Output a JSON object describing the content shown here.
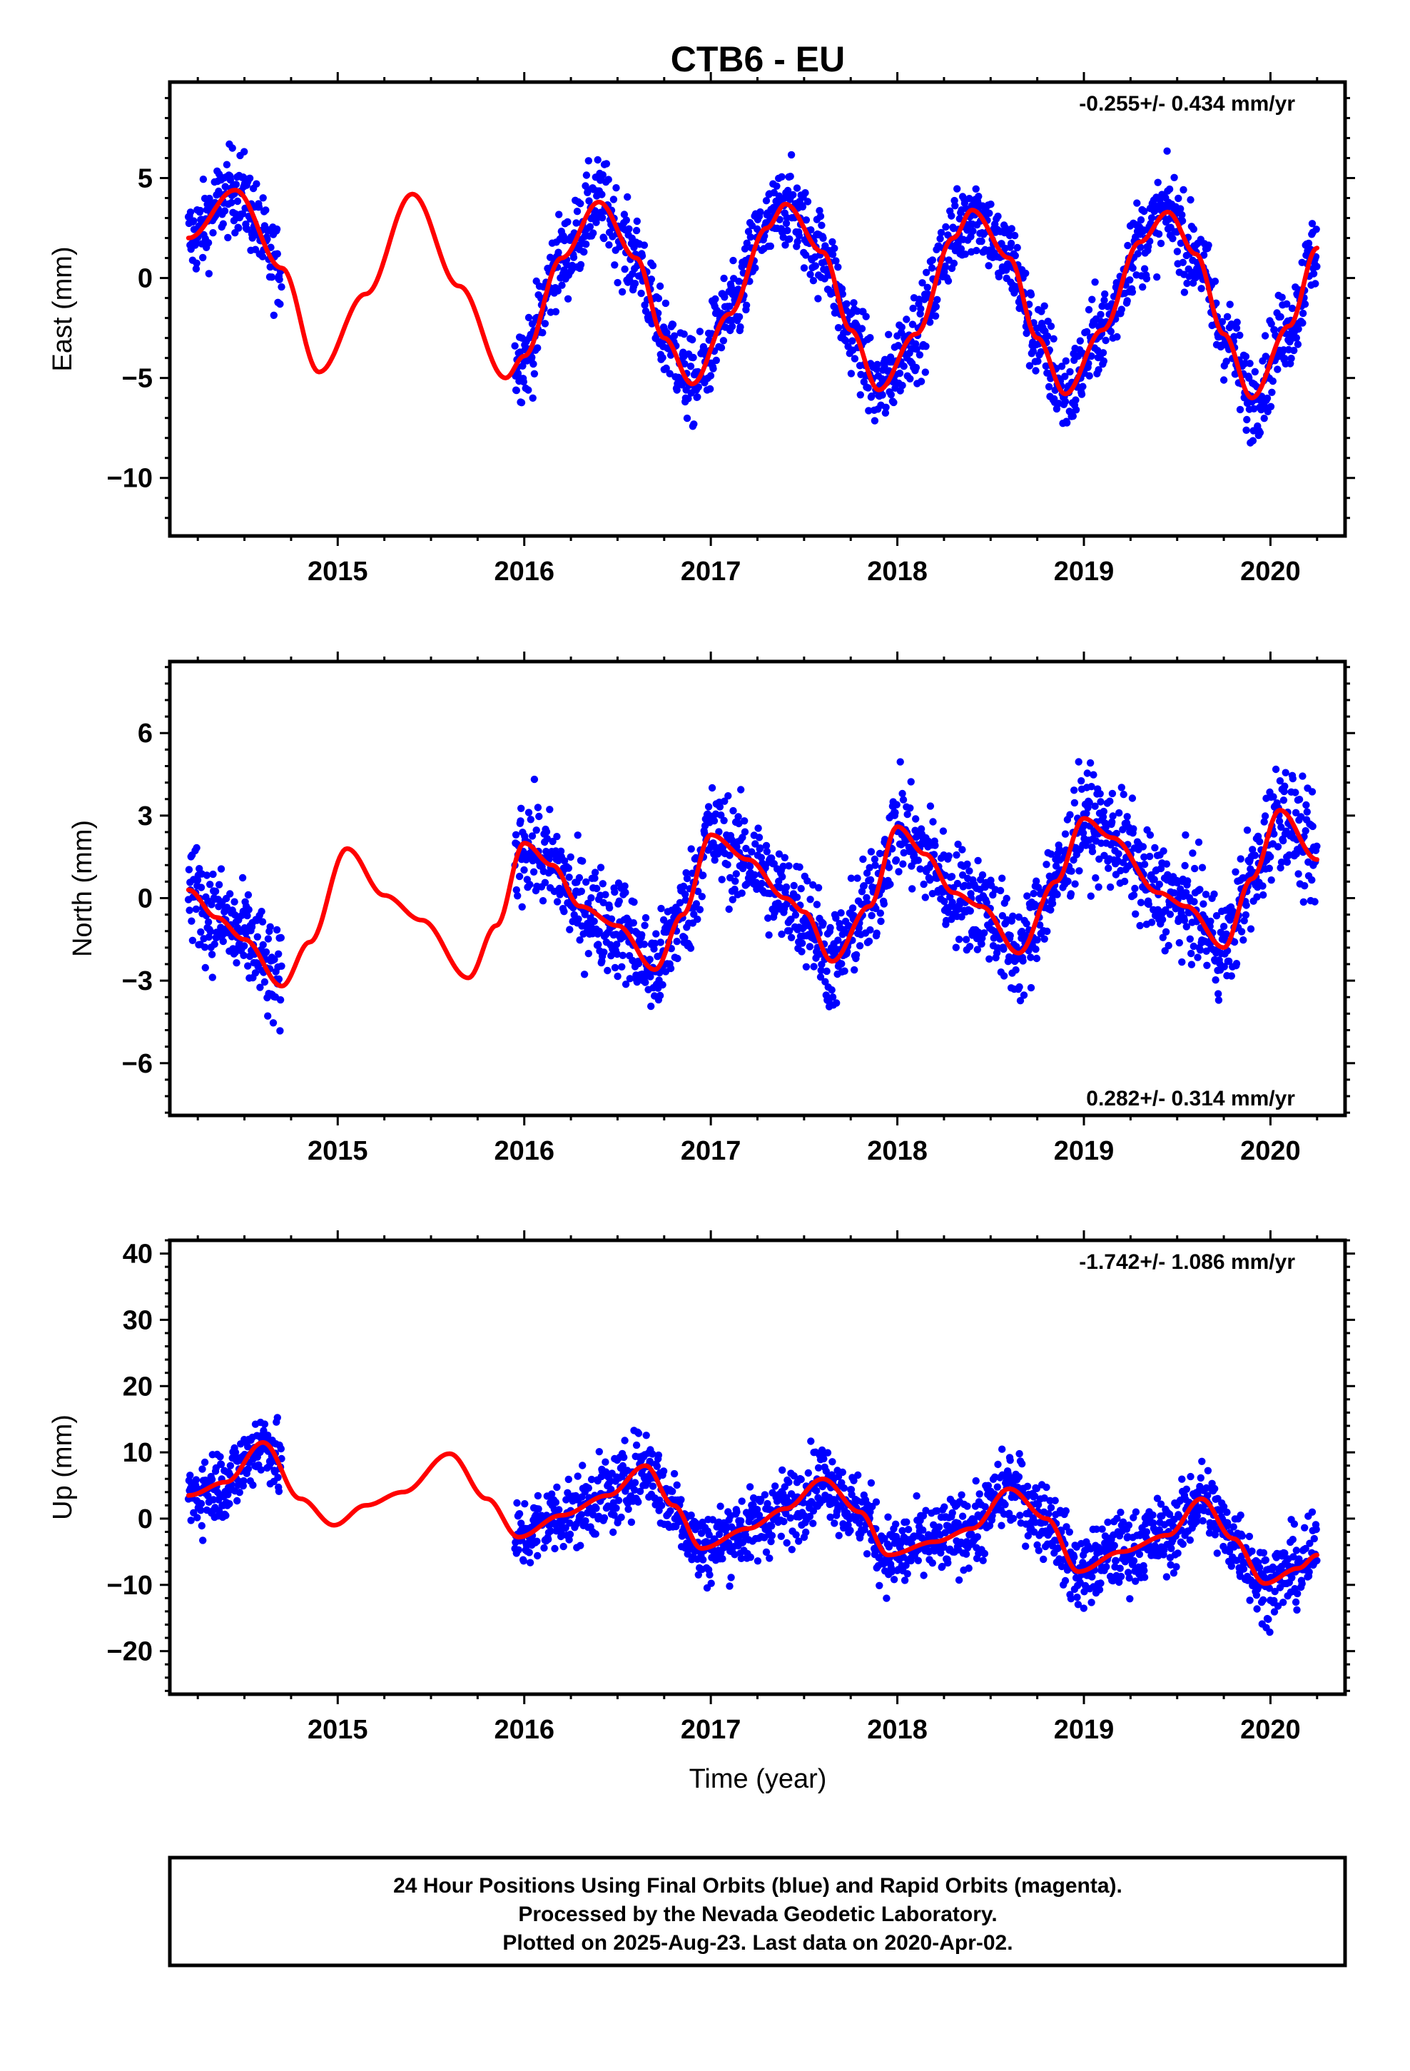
{
  "title": "CTB6 - EU",
  "xlabel": "Time (year)",
  "footer": {
    "line1": "24 Hour Positions Using Final Orbits (blue) and Rapid Orbits (magenta).",
    "line2": "Processed by the Nevada Geodetic Laboratory.",
    "line3": "Plotted on 2025-Aug-23. Last data on 2020-Apr-02."
  },
  "colors": {
    "points": "#0000ff",
    "fit": "#ff0000",
    "frame": "#000000"
  },
  "chart_data": [
    {
      "type": "scatter",
      "ylabel": "East (mm)",
      "rate": "-0.255+/- 0.434 mm/yr",
      "rate_position": "top-right",
      "xlim": [
        2014.1,
        2020.4
      ],
      "ylim": [
        -12.9,
        9.8
      ],
      "xticks": [
        2015,
        2016,
        2017,
        2018,
        2019,
        2020
      ],
      "yticks": [
        -10,
        -5,
        0,
        5
      ],
      "data_span_years": [
        [
          2014.2,
          2014.7
        ],
        [
          2015.95,
          2020.25
        ]
      ],
      "fit": {
        "color": "#ff0000",
        "points": [
          [
            2014.2,
            2.0
          ],
          [
            2014.45,
            4.4
          ],
          [
            2014.7,
            0.5
          ],
          [
            2014.9,
            -4.7
          ],
          [
            2015.15,
            -0.8
          ],
          [
            2015.4,
            4.2
          ],
          [
            2015.65,
            -0.4
          ],
          [
            2015.9,
            -5.0
          ],
          [
            2016.0,
            -3.9
          ],
          [
            2016.2,
            1.0
          ],
          [
            2016.4,
            3.8
          ],
          [
            2016.6,
            1.0
          ],
          [
            2016.75,
            -3.0
          ],
          [
            2016.9,
            -5.3
          ],
          [
            2017.1,
            -1.8
          ],
          [
            2017.3,
            2.5
          ],
          [
            2017.4,
            3.7
          ],
          [
            2017.6,
            1.3
          ],
          [
            2017.75,
            -2.6
          ],
          [
            2017.9,
            -5.6
          ],
          [
            2018.1,
            -2.8
          ],
          [
            2018.3,
            2.0
          ],
          [
            2018.4,
            3.4
          ],
          [
            2018.6,
            1.0
          ],
          [
            2018.75,
            -3.0
          ],
          [
            2018.9,
            -5.8
          ],
          [
            2019.1,
            -2.6
          ],
          [
            2019.3,
            1.8
          ],
          [
            2019.45,
            3.3
          ],
          [
            2019.6,
            1.2
          ],
          [
            2019.75,
            -2.8
          ],
          [
            2019.9,
            -6.0
          ],
          [
            2020.1,
            -2.4
          ],
          [
            2020.25,
            1.5
          ]
        ]
      }
    },
    {
      "type": "scatter",
      "ylabel": "North (mm)",
      "rate": "0.282+/- 0.314 mm/yr",
      "rate_position": "bottom-right",
      "xlim": [
        2014.1,
        2020.4
      ],
      "ylim": [
        -7.9,
        8.6
      ],
      "xticks": [
        2015,
        2016,
        2017,
        2018,
        2019,
        2020
      ],
      "yticks": [
        -6,
        -3,
        0,
        3,
        6
      ],
      "data_span_years": [
        [
          2014.2,
          2014.7
        ],
        [
          2015.95,
          2020.25
        ]
      ],
      "fit": {
        "color": "#ff0000",
        "points": [
          [
            2014.2,
            0.3
          ],
          [
            2014.35,
            -0.7
          ],
          [
            2014.5,
            -1.5
          ],
          [
            2014.7,
            -3.2
          ],
          [
            2014.85,
            -1.6
          ],
          [
            2015.05,
            1.8
          ],
          [
            2015.25,
            0.1
          ],
          [
            2015.45,
            -0.8
          ],
          [
            2015.7,
            -2.9
          ],
          [
            2015.85,
            -1.0
          ],
          [
            2016.0,
            2.0
          ],
          [
            2016.15,
            1.2
          ],
          [
            2016.3,
            -0.3
          ],
          [
            2016.5,
            -1.0
          ],
          [
            2016.7,
            -2.6
          ],
          [
            2016.85,
            -0.6
          ],
          [
            2017.0,
            2.3
          ],
          [
            2017.2,
            1.4
          ],
          [
            2017.4,
            0.0
          ],
          [
            2017.5,
            -0.5
          ],
          [
            2017.65,
            -2.3
          ],
          [
            2017.85,
            -0.3
          ],
          [
            2018.0,
            2.6
          ],
          [
            2018.15,
            1.6
          ],
          [
            2018.3,
            0.2
          ],
          [
            2018.45,
            -0.3
          ],
          [
            2018.65,
            -2.0
          ],
          [
            2018.85,
            0.6
          ],
          [
            2019.0,
            2.9
          ],
          [
            2019.15,
            2.2
          ],
          [
            2019.4,
            0.2
          ],
          [
            2019.55,
            -0.3
          ],
          [
            2019.75,
            -1.8
          ],
          [
            2019.9,
            0.7
          ],
          [
            2020.05,
            3.2
          ],
          [
            2020.25,
            1.4
          ]
        ]
      }
    },
    {
      "type": "scatter",
      "ylabel": "Up (mm)",
      "rate": "-1.742+/- 1.086 mm/yr",
      "rate_position": "top-right",
      "xlim": [
        2014.1,
        2020.4
      ],
      "ylim": [
        -26.5,
        42
      ],
      "xticks": [
        2015,
        2016,
        2017,
        2018,
        2019,
        2020
      ],
      "yticks": [
        -20,
        -10,
        0,
        10,
        20,
        30,
        40
      ],
      "data_span_years": [
        [
          2014.2,
          2014.7
        ],
        [
          2015.95,
          2020.25
        ]
      ],
      "fit": {
        "color": "#ff0000",
        "points": [
          [
            2014.2,
            3.5
          ],
          [
            2014.4,
            5.5
          ],
          [
            2014.6,
            11.5
          ],
          [
            2014.8,
            3.0
          ],
          [
            2014.98,
            -1.0
          ],
          [
            2015.15,
            2.0
          ],
          [
            2015.35,
            4.0
          ],
          [
            2015.6,
            9.8
          ],
          [
            2015.8,
            3.0
          ],
          [
            2015.97,
            -2.8
          ],
          [
            2016.2,
            0.5
          ],
          [
            2016.45,
            3.5
          ],
          [
            2016.65,
            8.0
          ],
          [
            2016.8,
            2.0
          ],
          [
            2016.95,
            -4.5
          ],
          [
            2017.2,
            -1.5
          ],
          [
            2017.4,
            1.5
          ],
          [
            2017.6,
            6.0
          ],
          [
            2017.8,
            1.0
          ],
          [
            2017.95,
            -5.5
          ],
          [
            2018.2,
            -3.5
          ],
          [
            2018.4,
            -1.5
          ],
          [
            2018.6,
            4.5
          ],
          [
            2018.8,
            0.0
          ],
          [
            2018.97,
            -8.0
          ],
          [
            2019.2,
            -5.0
          ],
          [
            2019.45,
            -2.5
          ],
          [
            2019.63,
            3.0
          ],
          [
            2019.8,
            -3.0
          ],
          [
            2019.97,
            -9.8
          ],
          [
            2020.15,
            -7.5
          ],
          [
            2020.25,
            -5.5
          ]
        ]
      }
    }
  ]
}
